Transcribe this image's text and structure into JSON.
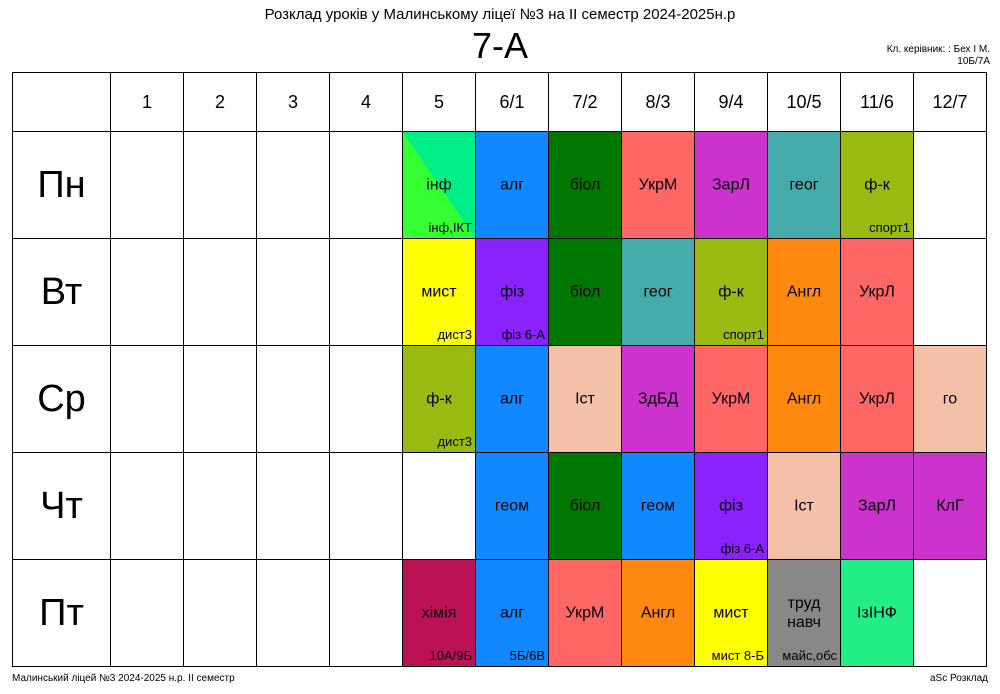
{
  "title": "Розклад уроків у Малинському ліцеї №3 на ІІ семестр 2024-2025н.р",
  "class_name": "7-А",
  "teacher_line1": "Кл. керівник: : Бех І М.",
  "teacher_line2": "10Б/7А",
  "periods": [
    "1",
    "2",
    "3",
    "4",
    "5",
    "6/1",
    "7/2",
    "8/3",
    "9/4",
    "10/5",
    "11/6",
    "12/7"
  ],
  "days": [
    {
      "name": "Пн",
      "lessons": [
        null,
        null,
        null,
        null,
        {
          "subject": "інф",
          "room": "інф,ІКТ",
          "color": "#00ee88",
          "color2": "#33ff33"
        },
        {
          "subject": "алг",
          "room": "",
          "color": "#1188ff"
        },
        {
          "subject": "біол",
          "room": "",
          "color": "#007700"
        },
        {
          "subject": "УкрМ",
          "room": "",
          "color": "#ff6666"
        },
        {
          "subject": "ЗарЛ",
          "room": "",
          "color": "#cc33cc"
        },
        {
          "subject": "геог",
          "room": "",
          "color": "#44aaaa"
        },
        {
          "subject": "ф-к",
          "room": "спорт1",
          "color": "#99bb11"
        },
        null
      ]
    },
    {
      "name": "Вт",
      "lessons": [
        null,
        null,
        null,
        null,
        {
          "subject": "мист",
          "room": "дист3",
          "color": "#ffff00"
        },
        {
          "subject": "фіз",
          "room": "фіз 6-А",
          "color": "#8822ff"
        },
        {
          "subject": "біол",
          "room": "",
          "color": "#007700"
        },
        {
          "subject": "геог",
          "room": "",
          "color": "#44aaaa"
        },
        {
          "subject": "ф-к",
          "room": "спорт1",
          "color": "#99bb11"
        },
        {
          "subject": "Англ",
          "room": "",
          "color": "#ff8811"
        },
        {
          "subject": "УкрЛ",
          "room": "",
          "color": "#ff6666"
        },
        null
      ]
    },
    {
      "name": "Ср",
      "lessons": [
        null,
        null,
        null,
        null,
        {
          "subject": "ф-к",
          "room": "дист3",
          "color": "#99bb11"
        },
        {
          "subject": "алг",
          "room": "",
          "color": "#1188ff"
        },
        {
          "subject": "Іст",
          "room": "",
          "color": "#f5c0a8"
        },
        {
          "subject": "ЗдБД",
          "room": "",
          "color": "#cc33cc"
        },
        {
          "subject": "УкрМ",
          "room": "",
          "color": "#ff6666"
        },
        {
          "subject": "Англ",
          "room": "",
          "color": "#ff8811"
        },
        {
          "subject": "УкрЛ",
          "room": "",
          "color": "#ff6666"
        },
        {
          "subject": "го",
          "room": "",
          "color": "#f5c0a8"
        }
      ]
    },
    {
      "name": "Чт",
      "lessons": [
        null,
        null,
        null,
        null,
        null,
        {
          "subject": "геом",
          "room": "",
          "color": "#1188ff"
        },
        {
          "subject": "біол",
          "room": "",
          "color": "#007700"
        },
        {
          "subject": "геом",
          "room": "",
          "color": "#1188ff"
        },
        {
          "subject": "фіз",
          "room": "фіз 6-А",
          "color": "#8822ff"
        },
        {
          "subject": "Іст",
          "room": "",
          "color": "#f5c0a8"
        },
        {
          "subject": "ЗарЛ",
          "room": "",
          "color": "#cc33cc"
        },
        {
          "subject": "КлГ",
          "room": "",
          "color": "#cc33cc"
        }
      ]
    },
    {
      "name": "Пт",
      "lessons": [
        null,
        null,
        null,
        null,
        {
          "subject": "хімія",
          "room": "10А/9Б",
          "color": "#bb1155"
        },
        {
          "subject": "алг",
          "room": "5Б/6В",
          "color": "#1188ff"
        },
        {
          "subject": "УкрМ",
          "room": "",
          "color": "#ff6666"
        },
        {
          "subject": "Англ",
          "room": "",
          "color": "#ff8811"
        },
        {
          "subject": "мист",
          "room": "мист 8-Б",
          "color": "#ffff00"
        },
        {
          "subject": "труд навч",
          "room": "майс,обс",
          "color": "#888888"
        },
        {
          "subject": "ІзІНФ",
          "room": "",
          "color": "#22ee88"
        },
        null
      ]
    }
  ],
  "footer_left": "Малинський ліцей №3  2024-2025 н.р. ІІ семестр",
  "footer_right": "aSc Розклад"
}
